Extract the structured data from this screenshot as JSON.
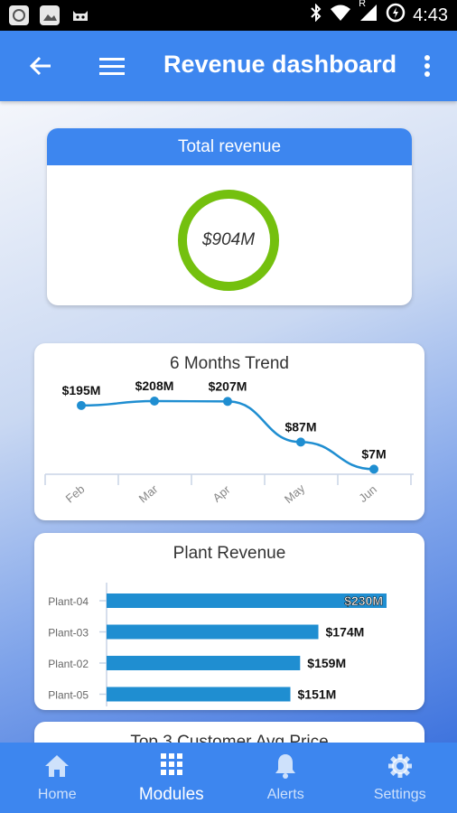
{
  "status_bar": {
    "time": "4:43",
    "network_label": "R"
  },
  "app_bar": {
    "title": "Revenue dashboard"
  },
  "total_revenue": {
    "title": "Total revenue",
    "value": "$904M",
    "ring_color": "#74c00e"
  },
  "trend": {
    "title": "6 Months Trend"
  },
  "plant": {
    "title": "Plant Revenue"
  },
  "top3": {
    "title": "Top 3 Customer Avg Price"
  },
  "chart_data": [
    {
      "type": "line",
      "title": "6 Months Trend",
      "categories": [
        "Feb",
        "Mar",
        "Apr",
        "May",
        "Jun"
      ],
      "values": [
        195,
        208,
        207,
        87,
        7
      ],
      "labels": [
        "$195M",
        "$208M",
        "$207M",
        "$87M",
        "$7M"
      ],
      "color": "#1f8ed1"
    },
    {
      "type": "bar",
      "orientation": "horizontal",
      "title": "Plant Revenue",
      "categories": [
        "Plant-04",
        "Plant-03",
        "Plant-02",
        "Plant-05"
      ],
      "values": [
        230,
        174,
        159,
        151
      ],
      "labels": [
        "$230M",
        "$174M",
        "$159M",
        "$151M"
      ],
      "color": "#1f8ed1"
    }
  ],
  "bottom_nav": {
    "items": [
      {
        "label": "Home",
        "icon": "home-icon",
        "active": false
      },
      {
        "label": "Modules",
        "icon": "grid-icon",
        "active": true
      },
      {
        "label": "Alerts",
        "icon": "bell-icon",
        "active": false
      },
      {
        "label": "Settings",
        "icon": "gear-icon",
        "active": false
      }
    ]
  },
  "colors": {
    "primary": "#3d86ef",
    "series": "#1f8ed1",
    "ring": "#74c00e"
  }
}
